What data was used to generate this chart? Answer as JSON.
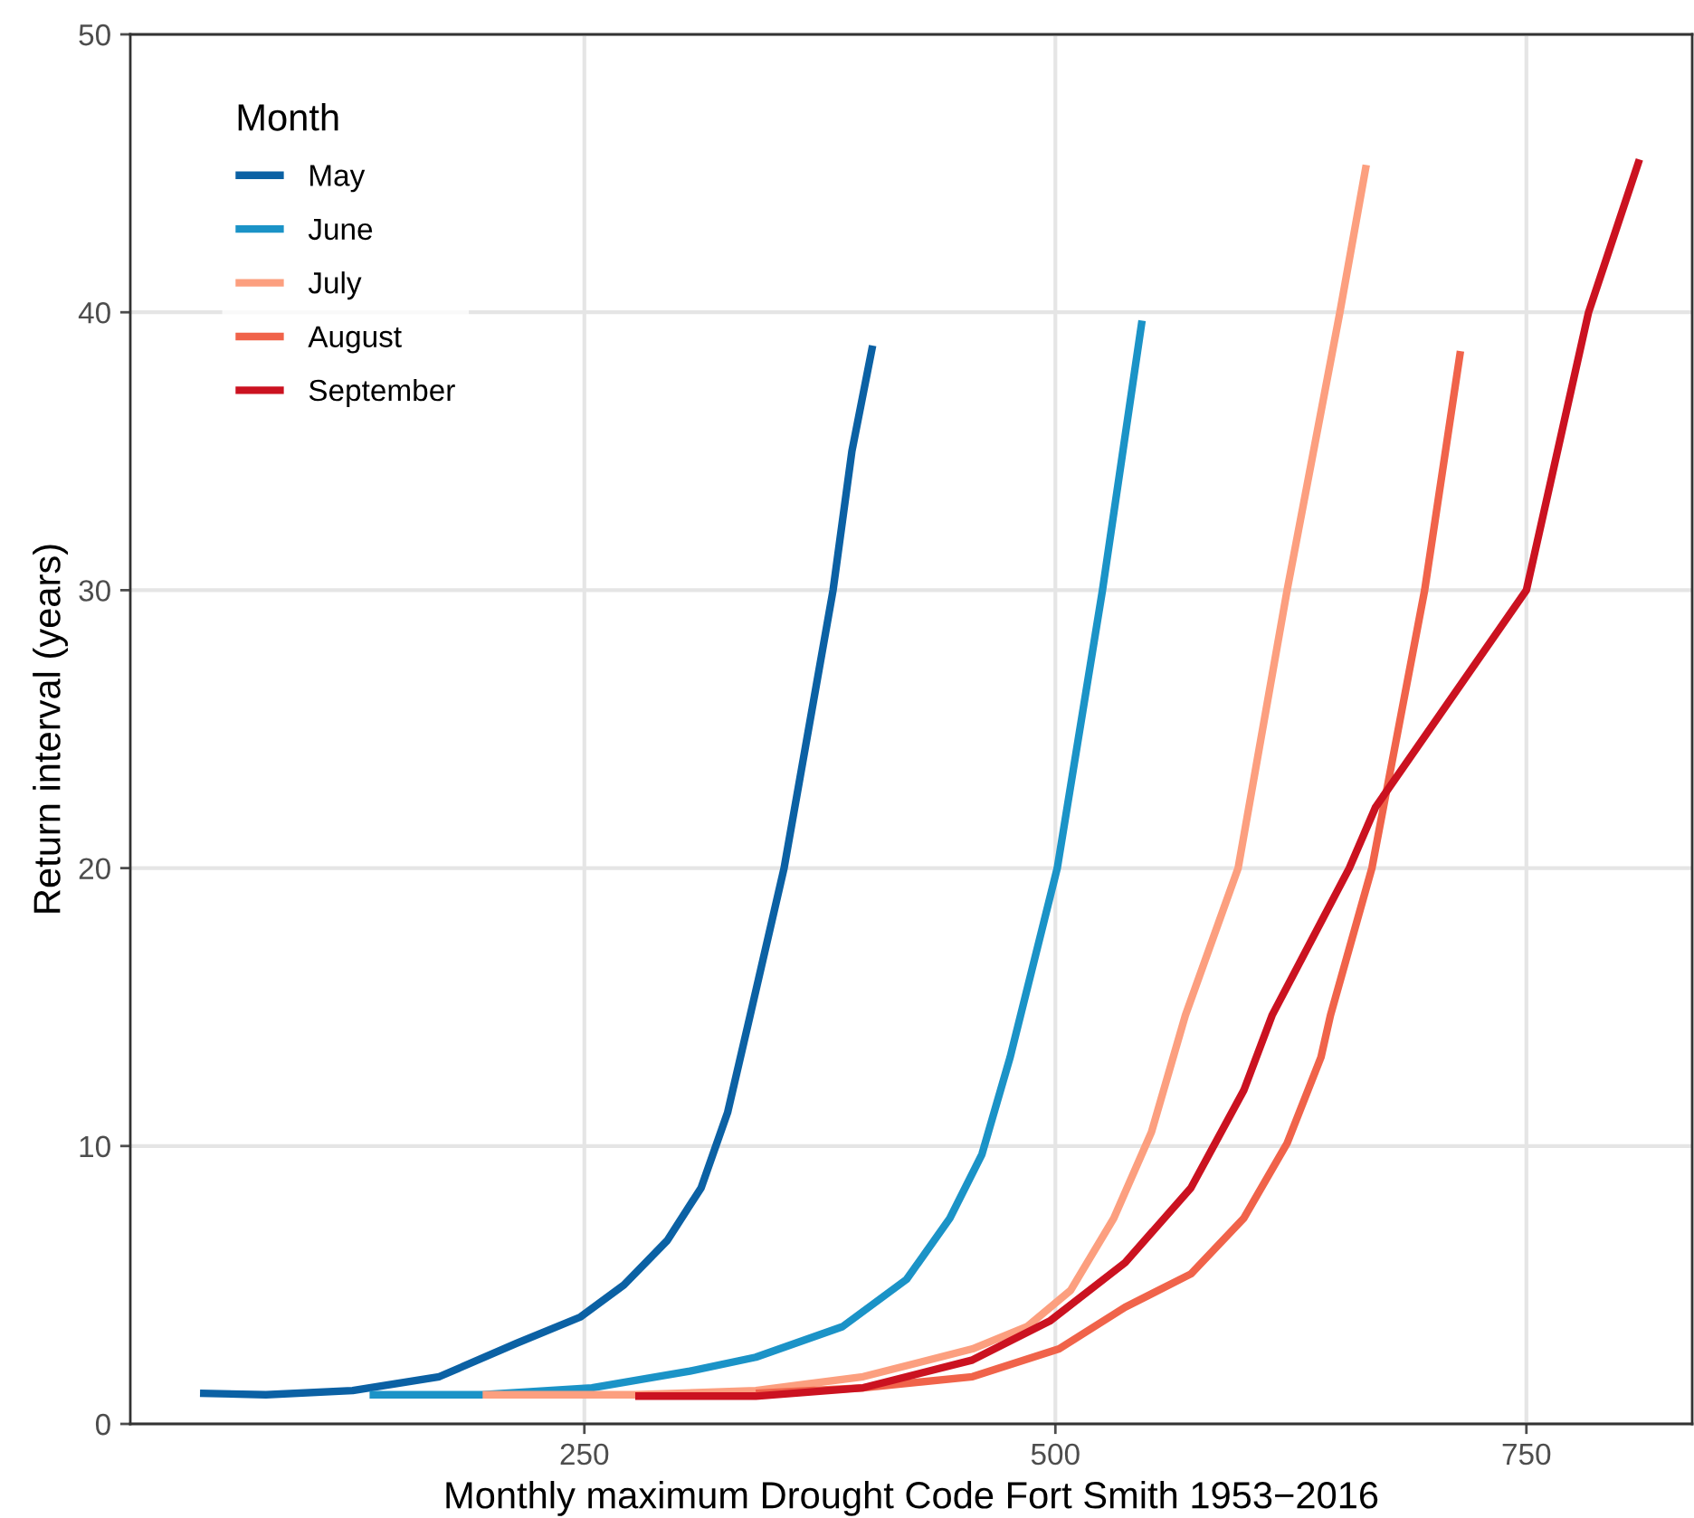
{
  "chart_data": {
    "type": "line",
    "xlabel": "Monthly maximum Drought Code Fort Smith 1953−2016",
    "ylabel": "Return interval (years)",
    "legend_title": "Month",
    "xlim": [
      9,
      838
    ],
    "xticks": [
      250,
      500,
      750
    ],
    "ylim": [
      0,
      50
    ],
    "yticks": [
      0,
      10,
      20,
      30,
      40,
      50
    ],
    "grid": true,
    "legend": "top left",
    "marker": "none",
    "line_style": "solid",
    "series": [
      {
        "name": "May",
        "color": "#0b61a4",
        "x": [
          46,
          81,
          127,
          173,
          214,
          248,
          271,
          294,
          312,
          326,
          338,
          356,
          382,
          392,
          403
        ],
        "values": [
          1.1,
          1.05,
          1.2,
          1.7,
          2.9,
          3.85,
          5.0,
          6.6,
          8.5,
          11.2,
          14.7,
          20,
          30,
          35,
          38.8
        ]
      },
      {
        "name": "June",
        "color": "#1b93c7",
        "x": [
          136,
          196,
          254,
          306,
          341,
          387,
          421,
          444,
          461,
          476,
          501,
          525,
          546
        ],
        "values": [
          1.05,
          1.05,
          1.3,
          1.9,
          2.4,
          3.5,
          5.2,
          7.4,
          9.7,
          13.2,
          20,
          30,
          39.7
        ]
      },
      {
        "name": "July",
        "color": "#fc9f7f",
        "x": [
          196,
          277,
          341,
          398,
          456,
          485,
          508,
          531,
          551,
          569,
          597,
          623,
          651,
          665
        ],
        "values": [
          1.05,
          1.05,
          1.2,
          1.7,
          2.7,
          3.5,
          4.8,
          7.4,
          10.5,
          14.7,
          20,
          30,
          40,
          45.3
        ]
      },
      {
        "name": "August",
        "color": "#f0634a",
        "x": [
          341,
          398,
          456,
          502,
          537,
          572,
          600,
          623,
          641,
          646,
          668,
          696,
          715
        ],
        "values": [
          1.1,
          1.3,
          1.7,
          2.7,
          4.2,
          5.4,
          7.4,
          10.1,
          13.2,
          14.7,
          20,
          30,
          38.6
        ]
      },
      {
        "name": "September",
        "color": "#cb1220",
        "x": [
          277,
          341,
          398,
          456,
          497,
          537,
          572,
          600,
          615,
          656,
          670,
          750,
          783,
          810
        ],
        "values": [
          1.0,
          1.0,
          1.3,
          2.3,
          3.7,
          5.8,
          8.5,
          12,
          14.7,
          20,
          22.2,
          30,
          40,
          45.5
        ]
      }
    ]
  }
}
